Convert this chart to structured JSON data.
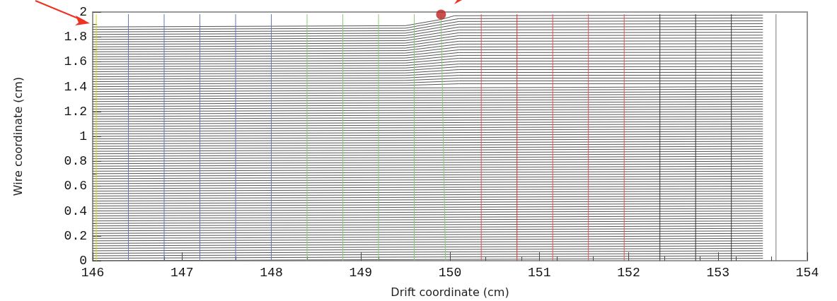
{
  "chart_data": {
    "type": "line",
    "xlabel": "Drift coordinate (cm)",
    "ylabel": "Wire coordinate (cm)",
    "xlim": [
      146,
      154
    ],
    "xticks": [
      146,
      147,
      148,
      149,
      150,
      151,
      152,
      153,
      154
    ],
    "ylim": [
      0,
      2
    ],
    "yticks": [
      0,
      0.2,
      0.4,
      0.6,
      0.8,
      1,
      1.2,
      1.4,
      1.6,
      1.8,
      2
    ],
    "grid": false,
    "marker": "none",
    "line_style": "solid",
    "series": [
      {
        "color": "#555555",
        "x": [
          146,
          153.5
        ],
        "values": [
          0,
          0.02
        ]
      },
      {
        "color": "#555555",
        "x": [
          146,
          153.5
        ],
        "values": [
          0.02,
          0.04
        ]
      },
      {
        "color": "#555555",
        "x": [
          146,
          153.5
        ],
        "values": [
          0.04,
          0.06
        ]
      },
      {
        "color": "#555555",
        "x": [
          146,
          153.5
        ],
        "values": [
          0.06,
          0.08
        ]
      },
      {
        "color": "#555555",
        "x": [
          146,
          153.5
        ],
        "values": [
          0.08,
          0.1
        ]
      },
      {
        "color": "#555555",
        "x": [
          146,
          153.5
        ],
        "values": [
          0.1,
          0.12
        ]
      },
      {
        "color": "#555555",
        "x": [
          146,
          153.5
        ],
        "values": [
          0.12,
          0.14
        ]
      },
      {
        "color": "#555555",
        "x": [
          146,
          153.5
        ],
        "values": [
          0.14,
          0.16
        ]
      },
      {
        "color": "#555555",
        "x": [
          146,
          153.5
        ],
        "values": [
          0.16,
          0.18
        ]
      },
      {
        "color": "#555555",
        "x": [
          146,
          153.5
        ],
        "values": [
          0.18,
          0.2
        ]
      },
      {
        "color": "#555555",
        "x": [
          146,
          153.5
        ],
        "values": [
          0.2,
          0.22
        ]
      },
      {
        "color": "#555555",
        "x": [
          146,
          153.5
        ],
        "values": [
          0.22,
          0.24
        ]
      },
      {
        "color": "#555555",
        "x": [
          146,
          153.5
        ],
        "values": [
          0.24,
          0.26
        ]
      },
      {
        "color": "#555555",
        "x": [
          146,
          153.5
        ],
        "values": [
          0.26,
          0.28
        ]
      },
      {
        "color": "#555555",
        "x": [
          146,
          153.5
        ],
        "values": [
          0.28,
          0.3
        ]
      },
      {
        "color": "#555555",
        "x": [
          146,
          153.5
        ],
        "values": [
          0.3,
          0.32
        ]
      },
      {
        "color": "#555555",
        "x": [
          146,
          153.5
        ],
        "values": [
          0.32,
          0.34
        ]
      },
      {
        "color": "#555555",
        "x": [
          146,
          153.5
        ],
        "values": [
          0.34,
          0.36
        ]
      },
      {
        "color": "#555555",
        "x": [
          146,
          153.5
        ],
        "values": [
          0.36,
          0.38
        ]
      },
      {
        "color": "#555555",
        "x": [
          146,
          153.5
        ],
        "values": [
          0.38,
          0.4
        ]
      },
      {
        "color": "#555555",
        "x": [
          146,
          153.5
        ],
        "values": [
          0.4,
          0.42
        ]
      },
      {
        "color": "#555555",
        "x": [
          146,
          153.5
        ],
        "values": [
          0.42,
          0.44
        ]
      },
      {
        "color": "#555555",
        "x": [
          146,
          153.5
        ],
        "values": [
          0.44,
          0.46
        ]
      },
      {
        "color": "#555555",
        "x": [
          146,
          153.5
        ],
        "values": [
          0.46,
          0.48
        ]
      },
      {
        "color": "#555555",
        "x": [
          146,
          153.5
        ],
        "values": [
          0.48,
          0.5
        ]
      },
      {
        "color": "#555555",
        "x": [
          146,
          153.5
        ],
        "values": [
          0.5,
          0.52
        ]
      },
      {
        "color": "#555555",
        "x": [
          146,
          153.5
        ],
        "values": [
          0.52,
          0.54
        ]
      },
      {
        "color": "#555555",
        "x": [
          146,
          153.5
        ],
        "values": [
          0.54,
          0.56
        ]
      },
      {
        "color": "#555555",
        "x": [
          146,
          153.5
        ],
        "values": [
          0.56,
          0.58
        ]
      },
      {
        "color": "#555555",
        "x": [
          146,
          153.5
        ],
        "values": [
          0.58,
          0.6
        ]
      },
      {
        "color": "#555555",
        "x": [
          146,
          153.5
        ],
        "values": [
          0.6,
          0.62
        ]
      },
      {
        "color": "#555555",
        "x": [
          146,
          153.5
        ],
        "values": [
          0.62,
          0.64
        ]
      },
      {
        "color": "#555555",
        "x": [
          146,
          153.5
        ],
        "values": [
          0.64,
          0.66
        ]
      },
      {
        "color": "#555555",
        "x": [
          146,
          153.5
        ],
        "values": [
          0.66,
          0.68
        ]
      },
      {
        "color": "#555555",
        "x": [
          146,
          153.5
        ],
        "values": [
          0.68,
          0.7
        ]
      },
      {
        "color": "#555555",
        "x": [
          146,
          153.5
        ],
        "values": [
          0.7,
          0.72
        ]
      },
      {
        "color": "#555555",
        "x": [
          146,
          153.5
        ],
        "values": [
          0.72,
          0.74
        ]
      },
      {
        "color": "#555555",
        "x": [
          146,
          153.5
        ],
        "values": [
          0.74,
          0.76
        ]
      },
      {
        "color": "#555555",
        "x": [
          146,
          153.5
        ],
        "values": [
          0.76,
          0.78
        ]
      },
      {
        "color": "#555555",
        "x": [
          146,
          153.5
        ],
        "values": [
          0.78,
          0.8
        ]
      },
      {
        "color": "#555555",
        "x": [
          146,
          153.5
        ],
        "values": [
          0.8,
          0.82
        ]
      },
      {
        "color": "#555555",
        "x": [
          146,
          153.5
        ],
        "values": [
          0.82,
          0.84
        ]
      },
      {
        "color": "#555555",
        "x": [
          146,
          153.5
        ],
        "values": [
          0.84,
          0.86
        ]
      },
      {
        "color": "#555555",
        "x": [
          146,
          153.5
        ],
        "values": [
          0.86,
          0.88
        ]
      },
      {
        "color": "#555555",
        "x": [
          146,
          153.5
        ],
        "values": [
          0.88,
          0.9
        ]
      },
      {
        "color": "#555555",
        "x": [
          146,
          153.5
        ],
        "values": [
          0.9,
          0.92
        ]
      },
      {
        "color": "#555555",
        "x": [
          146,
          153.5
        ],
        "values": [
          0.92,
          0.94
        ]
      },
      {
        "color": "#555555",
        "x": [
          146,
          153.5
        ],
        "values": [
          0.94,
          0.96
        ]
      },
      {
        "color": "#555555",
        "x": [
          146,
          153.5
        ],
        "values": [
          0.96,
          0.98
        ]
      },
      {
        "color": "#555555",
        "x": [
          146,
          153.5
        ],
        "values": [
          0.98,
          1
        ]
      },
      {
        "color": "#555555",
        "x": [
          146,
          153.5
        ],
        "values": [
          1,
          1.02
        ]
      },
      {
        "color": "#555555",
        "x": [
          146,
          153.5
        ],
        "values": [
          1.02,
          1.04
        ]
      },
      {
        "color": "#555555",
        "x": [
          146,
          153.5
        ],
        "values": [
          1.04,
          1.06
        ]
      },
      {
        "color": "#555555",
        "x": [
          146,
          153.5
        ],
        "values": [
          1.06,
          1.08
        ]
      },
      {
        "color": "#555555",
        "x": [
          146,
          153.5
        ],
        "values": [
          1.08,
          1.1
        ]
      },
      {
        "color": "#555555",
        "x": [
          146,
          153.5
        ],
        "values": [
          1.1,
          1.12
        ]
      },
      {
        "color": "#555555",
        "x": [
          146,
          153.5
        ],
        "values": [
          1.12,
          1.14
        ]
      },
      {
        "color": "#555555",
        "x": [
          146,
          153.5
        ],
        "values": [
          1.14,
          1.16
        ]
      },
      {
        "color": "#555555",
        "x": [
          146,
          153.5
        ],
        "values": [
          1.16,
          1.18
        ]
      },
      {
        "color": "#555555",
        "x": [
          146,
          153.5
        ],
        "values": [
          1.18,
          1.2
        ]
      },
      {
        "color": "#555555",
        "x": [
          146,
          153.5
        ],
        "values": [
          1.2,
          1.22
        ]
      },
      {
        "color": "#555555",
        "x": [
          146,
          153.5
        ],
        "values": [
          1.22,
          1.24
        ]
      },
      {
        "color": "#555555",
        "x": [
          146,
          153.5
        ],
        "values": [
          1.24,
          1.26
        ]
      },
      {
        "color": "#555555",
        "x": [
          146,
          153.5
        ],
        "values": [
          1.26,
          1.28
        ]
      },
      {
        "color": "#555555",
        "x": [
          146,
          153.5
        ],
        "values": [
          1.28,
          1.3
        ]
      },
      {
        "color": "#555555",
        "x": [
          146,
          153.5
        ],
        "values": [
          1.3,
          1.32
        ]
      },
      {
        "color": "#555555",
        "x": [
          146,
          153.5
        ],
        "values": [
          1.32,
          1.34
        ]
      },
      {
        "color": "#555555",
        "x": [
          146,
          153.5
        ],
        "values": [
          1.34,
          1.36
        ]
      },
      {
        "color": "#555555",
        "x": [
          146,
          153.5
        ],
        "values": [
          1.36,
          1.38
        ]
      },
      {
        "color": "#555555",
        "x": [
          146,
          153.5
        ],
        "values": [
          1.38,
          1.4
        ]
      },
      {
        "color": "#555555",
        "x": [
          146,
          149.5,
          150.1,
          153.5
        ],
        "values": [
          1.4,
          1.41,
          1.423,
          1.423
        ]
      },
      {
        "color": "#555555",
        "x": [
          146,
          149.5,
          150.1,
          153.5
        ],
        "values": [
          1.42,
          1.43,
          1.446,
          1.446
        ]
      },
      {
        "color": "#555555",
        "x": [
          146,
          149.5,
          150.1,
          153.5
        ],
        "values": [
          1.44,
          1.45,
          1.468,
          1.469
        ]
      },
      {
        "color": "#555555",
        "x": [
          146,
          149.5,
          150.1,
          153.5
        ],
        "values": [
          1.46,
          1.47,
          1.491,
          1.492
        ]
      },
      {
        "color": "#555555",
        "x": [
          146,
          149.5,
          150.1,
          153.5
        ],
        "values": [
          1.48,
          1.49,
          1.514,
          1.515
        ]
      },
      {
        "color": "#555555",
        "x": [
          146,
          149.5,
          150.1,
          153.5
        ],
        "values": [
          1.5,
          1.51,
          1.537,
          1.538
        ]
      },
      {
        "color": "#555555",
        "x": [
          146,
          149.5,
          150.1,
          153.5
        ],
        "values": [
          1.52,
          1.53,
          1.56,
          1.561
        ]
      },
      {
        "color": "#555555",
        "x": [
          146,
          149.5,
          150.1,
          153.5
        ],
        "values": [
          1.54,
          1.55,
          1.582,
          1.584
        ]
      },
      {
        "color": "#555555",
        "x": [
          146,
          149.5,
          150.1,
          153.5
        ],
        "values": [
          1.56,
          1.57,
          1.605,
          1.607
        ]
      },
      {
        "color": "#555555",
        "x": [
          146,
          149.5,
          150.1,
          153.5
        ],
        "values": [
          1.58,
          1.59,
          1.628,
          1.63
        ]
      },
      {
        "color": "#555555",
        "x": [
          146,
          149.5,
          150.1,
          153.5
        ],
        "values": [
          1.6,
          1.61,
          1.651,
          1.653
        ]
      },
      {
        "color": "#555555",
        "x": [
          146,
          149.5,
          150.1,
          153.5
        ],
        "values": [
          1.62,
          1.63,
          1.674,
          1.676
        ]
      },
      {
        "color": "#555555",
        "x": [
          146,
          149.5,
          150.1,
          153.5
        ],
        "values": [
          1.64,
          1.65,
          1.696,
          1.699
        ]
      },
      {
        "color": "#555555",
        "x": [
          146,
          149.5,
          150.1,
          153.5
        ],
        "values": [
          1.66,
          1.67,
          1.719,
          1.722
        ]
      },
      {
        "color": "#555555",
        "x": [
          146,
          149.5,
          150.1,
          153.5
        ],
        "values": [
          1.68,
          1.69,
          1.742,
          1.745
        ]
      },
      {
        "color": "#555555",
        "x": [
          146,
          149.5,
          150.1,
          153.5
        ],
        "values": [
          1.7,
          1.71,
          1.765,
          1.768
        ]
      },
      {
        "color": "#555555",
        "x": [
          146,
          149.5,
          150.1,
          153.5
        ],
        "values": [
          1.72,
          1.73,
          1.788,
          1.791
        ]
      },
      {
        "color": "#555555",
        "x": [
          146,
          149.5,
          150.1,
          153.5
        ],
        "values": [
          1.74,
          1.75,
          1.81,
          1.814
        ]
      },
      {
        "color": "#555555",
        "x": [
          146,
          149.5,
          150.1,
          153.5
        ],
        "values": [
          1.76,
          1.77,
          1.833,
          1.837
        ]
      },
      {
        "color": "#555555",
        "x": [
          146,
          149.5,
          150.1,
          153.5
        ],
        "values": [
          1.78,
          1.79,
          1.856,
          1.86
        ]
      },
      {
        "color": "#555555",
        "x": [
          146,
          149.5,
          150.1,
          153.5
        ],
        "values": [
          1.8,
          1.81,
          1.879,
          1.883
        ]
      },
      {
        "color": "#555555",
        "x": [
          146,
          149.5,
          150.1,
          153.5
        ],
        "values": [
          1.82,
          1.83,
          1.902,
          1.906
        ]
      },
      {
        "color": "#555555",
        "x": [
          146,
          149.5,
          150.1,
          153.5
        ],
        "values": [
          1.84,
          1.85,
          1.924,
          1.929
        ]
      },
      {
        "color": "#555555",
        "x": [
          146,
          149.5,
          150.1,
          153.5
        ],
        "values": [
          1.86,
          1.87,
          1.947,
          1.952
        ]
      },
      {
        "color": "#555555",
        "x": [
          146,
          149.5,
          149.9,
          150.05,
          153.5
        ],
        "values": [
          1.88,
          1.89,
          1.94,
          1.97,
          1.975
        ]
      },
      {
        "color": "#dddd00",
        "x": [
          146.04,
          146.04
        ],
        "values": [
          0,
          1.98
        ]
      },
      {
        "color": "#6677bb",
        "x": [
          146.4,
          146.4
        ],
        "values": [
          0,
          1.98
        ]
      },
      {
        "color": "#6677bb",
        "x": [
          146.8,
          146.8
        ],
        "values": [
          0,
          1.98
        ]
      },
      {
        "color": "#6677bb",
        "x": [
          147.2,
          147.2
        ],
        "values": [
          0,
          1.98
        ]
      },
      {
        "color": "#6677bb",
        "x": [
          147.6,
          147.6
        ],
        "values": [
          0,
          1.98
        ]
      },
      {
        "color": "#6677bb",
        "x": [
          148,
          148
        ],
        "values": [
          0,
          1.98
        ]
      },
      {
        "color": "#88cc77",
        "x": [
          148.4,
          148.4
        ],
        "values": [
          0,
          1.98
        ]
      },
      {
        "color": "#88cc77",
        "x": [
          148.8,
          148.8
        ],
        "values": [
          0,
          1.98
        ]
      },
      {
        "color": "#88cc77",
        "x": [
          149.2,
          149.2
        ],
        "values": [
          0,
          1.98
        ]
      },
      {
        "color": "#88cc77",
        "x": [
          149.6,
          149.6
        ],
        "values": [
          0,
          1.98
        ]
      },
      {
        "color": "#88cc77",
        "x": [
          149.95,
          149.9
        ],
        "values": [
          0,
          1.96
        ]
      },
      {
        "color": "#e05555",
        "x": [
          150.35,
          150.35
        ],
        "values": [
          0,
          1.98
        ]
      },
      {
        "color": "#dd3333",
        "x": [
          150.75,
          150.75
        ],
        "values": [
          0,
          1.98
        ]
      },
      {
        "color": "#e05555",
        "x": [
          151.15,
          151.15
        ],
        "values": [
          0,
          1.98
        ]
      },
      {
        "color": "#e05555",
        "x": [
          151.55,
          151.55
        ],
        "values": [
          0,
          1.98
        ]
      },
      {
        "color": "#e05555",
        "x": [
          151.95,
          151.95
        ],
        "values": [
          0,
          1.98
        ]
      },
      {
        "color": "#333333",
        "x": [
          152.35,
          152.35
        ],
        "values": [
          0,
          1.98
        ]
      },
      {
        "color": "#333333",
        "x": [
          152.75,
          152.75
        ],
        "values": [
          0,
          1.98
        ]
      },
      {
        "color": "#333333",
        "x": [
          153.15,
          153.15
        ],
        "values": [
          0,
          1.98
        ]
      },
      {
        "color": "#777777",
        "x": [
          153.65,
          153.65
        ],
        "values": [
          0,
          1.98
        ]
      },
      {
        "type": "scatter",
        "marker": "circle",
        "color": "#bb2222",
        "x": [
          149.9
        ],
        "values": [
          1.98
        ]
      }
    ]
  }
}
